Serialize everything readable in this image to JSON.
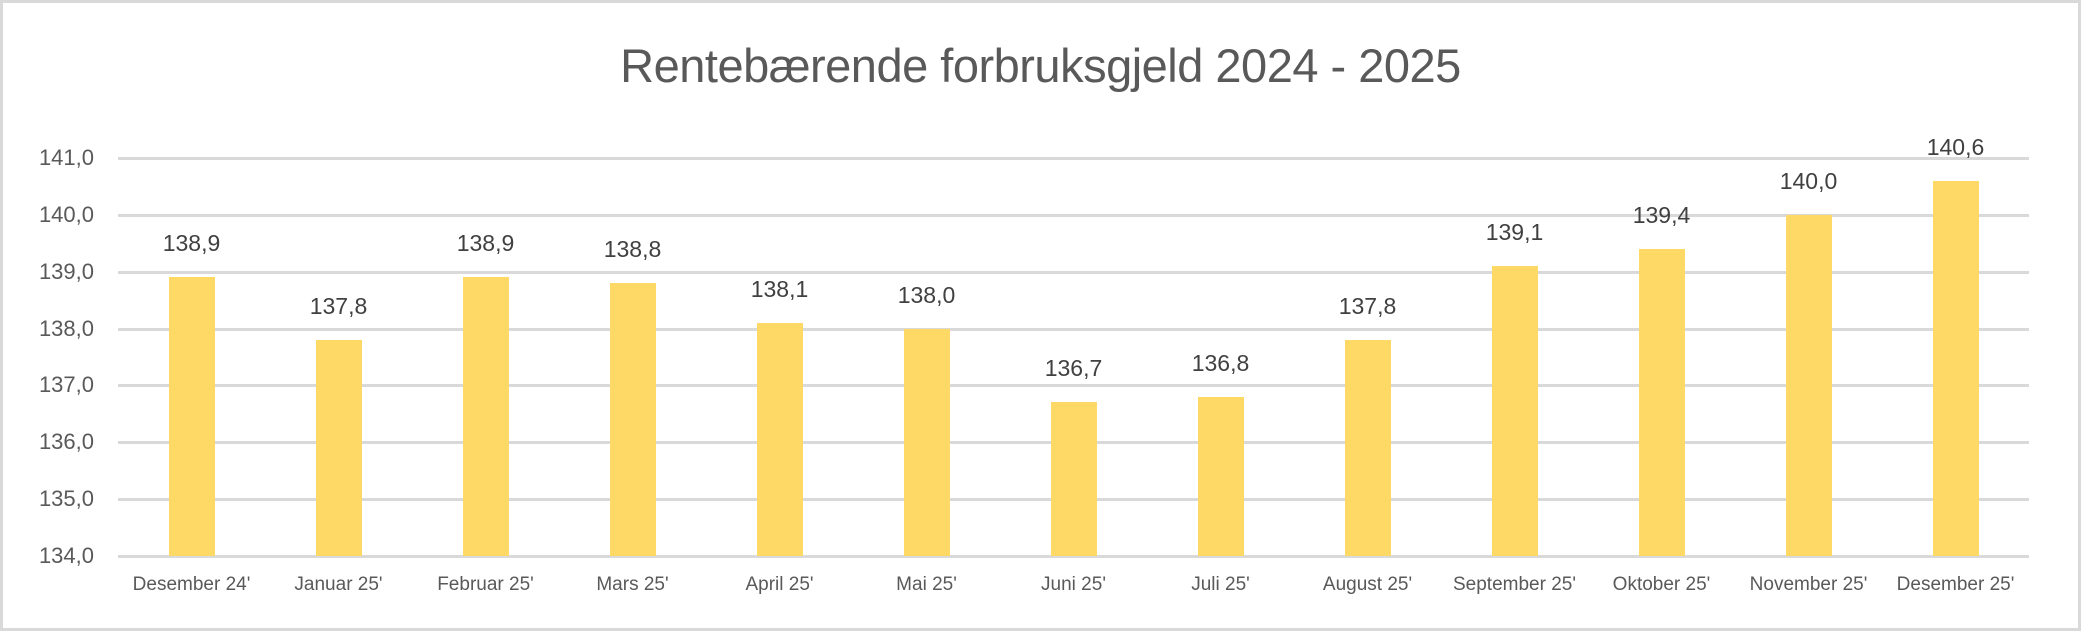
{
  "chart_data": {
    "type": "bar",
    "title": "Rentebærende forbruksgjeld 2024 - 2025",
    "xlabel": "",
    "ylabel": "",
    "ylim": [
      134.0,
      141.0
    ],
    "yticks": [
      "134,0",
      "135,0",
      "136,0",
      "137,0",
      "138,0",
      "139,0",
      "140,0",
      "141,0"
    ],
    "grid": true,
    "legend": null,
    "bar_color": "#FFD966",
    "categories": [
      "Desember 24'",
      "Januar 25'",
      "Februar 25'",
      "Mars 25'",
      "April 25'",
      "Mai 25'",
      "Juni 25'",
      "Juli 25'",
      "August 25'",
      "September 25'",
      "Oktober 25'",
      "November 25'",
      "Desember 25'"
    ],
    "values": [
      138.9,
      137.8,
      138.9,
      138.8,
      138.1,
      138.0,
      136.7,
      136.8,
      137.8,
      139.1,
      139.4,
      140.0,
      140.6
    ],
    "data_labels": [
      "138,9",
      "137,8",
      "138,9",
      "138,8",
      "138,1",
      "138,0",
      "136,7",
      "136,8",
      "137,8",
      "139,1",
      "139,4",
      "140,0",
      "140,6"
    ]
  }
}
